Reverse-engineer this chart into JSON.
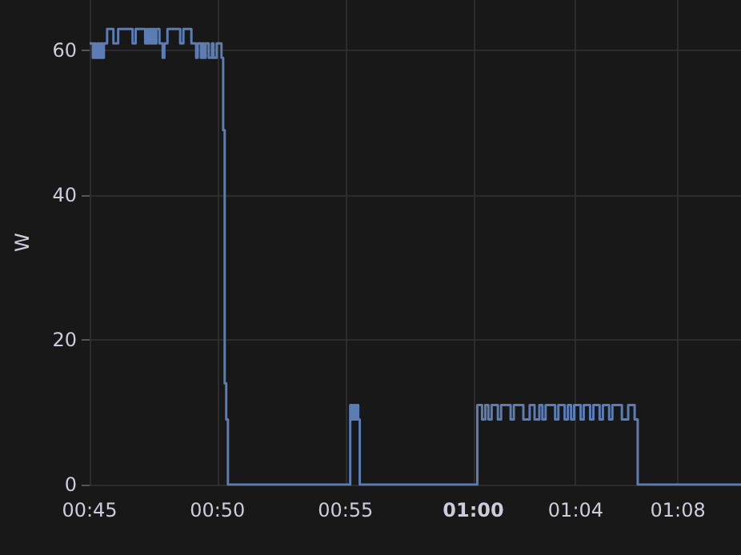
{
  "chart_data": {
    "type": "step",
    "ylabel": "W",
    "color": "#5b7db3",
    "xlim": [
      0.75,
      1.1744
    ],
    "ylim": [
      0,
      67
    ],
    "xticks": [
      {
        "value": 0.75,
        "label": "00:45"
      },
      {
        "value": 0.8333,
        "label": "00:50"
      },
      {
        "value": 0.9167,
        "label": "00:55"
      },
      {
        "value": 1,
        "label": "01:00"
      },
      {
        "value": 1.0667,
        "label": "01:04"
      },
      {
        "value": 1.1333,
        "label": "01:08"
      }
    ],
    "yticks": [
      0,
      20,
      40,
      60
    ],
    "grid": true,
    "marker": "none",
    "line_style": "solid",
    "x": [
      0.75,
      0.7521,
      0.7531,
      0.7541,
      0.7552,
      0.7562,
      0.7572,
      0.7583,
      0.7593,
      0.7614,
      0.7655,
      0.7686,
      0.778,
      0.78,
      0.7862,
      0.7873,
      0.7883,
      0.7893,
      0.7904,
      0.7914,
      0.7924,
      0.7935,
      0.7955,
      0.7976,
      0.7987,
      0.8007,
      0.809,
      0.8111,
      0.8163,
      0.8194,
      0.8204,
      0.8225,
      0.8235,
      0.8245,
      0.8256,
      0.8276,
      0.8297,
      0.8307,
      0.8328,
      0.8359,
      0.837,
      0.838,
      0.839,
      0.8401,
      0.9198,
      0.9209,
      0.9219,
      0.923,
      0.924,
      0.925,
      0.926,
      1.0026,
      1.0057,
      1.0078,
      1.0098,
      1.0119,
      1.016,
      1.0181,
      1.0243,
      1.0264,
      1.0326,
      1.0367,
      1.0399,
      1.043,
      1.045,
      1.0471,
      1.0533,
      1.0554,
      1.0595,
      1.0616,
      1.0637,
      1.0657,
      1.0699,
      1.0719,
      1.0761,
      1.0782,
      1.0823,
      1.0844,
      1.0885,
      1.0906,
      1.0968,
      1.1009,
      1.1051,
      1.1071,
      1.1744
    ],
    "values": [
      61,
      59,
      61,
      59,
      61,
      59,
      61,
      59,
      61,
      63,
      61,
      63,
      61,
      63,
      61,
      63,
      61,
      63,
      61,
      63,
      61,
      63,
      61,
      59,
      61,
      63,
      61,
      63,
      61,
      59,
      61,
      59,
      61,
      59,
      61,
      59,
      61,
      59,
      61,
      59,
      49,
      14,
      9,
      0,
      11,
      9,
      11,
      9,
      11,
      9,
      0,
      11,
      9,
      11,
      9,
      11,
      9,
      11,
      9,
      11,
      9,
      11,
      9,
      11,
      9,
      11,
      9,
      11,
      9,
      11,
      9,
      11,
      9,
      11,
      9,
      11,
      9,
      11,
      9,
      11,
      9,
      11,
      9,
      0,
      0
    ]
  }
}
